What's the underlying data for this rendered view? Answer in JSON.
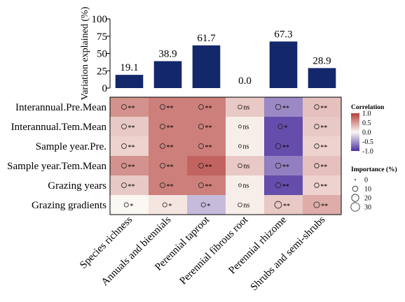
{
  "chart_data": [
    {
      "type": "bar",
      "categories": [
        "Species richness",
        "Annuals and biennials",
        "Perennial taproot",
        "Perennial fibrous root",
        "Perennial rhizome",
        "Shrubs and semi-shrubs"
      ],
      "values": [
        19.1,
        38.9,
        61.7,
        0.0,
        67.3,
        28.9
      ],
      "value_labels": [
        "19.1",
        "38.9",
        "61.7",
        "0.0",
        "67.3",
        "28.9"
      ],
      "ylabel": "Variation explained (%)",
      "ylim": [
        0,
        100
      ],
      "yticks": [
        0,
        25,
        50,
        75,
        100
      ],
      "bar_color": "#13276b"
    },
    {
      "type": "heatmap",
      "rows": [
        "Interannual.Pre.Mean",
        "Interannual.Tem.Mean",
        "Sample year.Pre.",
        "Sample year.Tem.Mean",
        "Grazing years",
        "Grazing gradients"
      ],
      "columns": [
        "Species richness",
        "Annuals and biennials",
        "Perennial taproot",
        "Perennial fibrous root",
        "Perennial rhizome",
        "Shrubs and semi-shrubs"
      ],
      "correlation": [
        [
          0.55,
          0.65,
          0.65,
          0.25,
          -0.55,
          0.3
        ],
        [
          0.25,
          0.65,
          0.65,
          0.05,
          -0.85,
          0.25
        ],
        [
          0.2,
          0.65,
          0.65,
          0.05,
          -0.85,
          0.2
        ],
        [
          0.55,
          0.65,
          0.8,
          0.25,
          -0.6,
          0.3
        ],
        [
          0.25,
          0.65,
          0.65,
          0.05,
          -0.85,
          0.2
        ],
        [
          0.0,
          0.1,
          -0.3,
          0.05,
          0.25,
          0.4
        ]
      ],
      "importance": [
        [
          8,
          8,
          8,
          5,
          10,
          7
        ],
        [
          8,
          8,
          8,
          2,
          7,
          7
        ],
        [
          8,
          8,
          8,
          2,
          10,
          7
        ],
        [
          8,
          8,
          8,
          5,
          10,
          7
        ],
        [
          8,
          8,
          8,
          2,
          10,
          7
        ],
        [
          6,
          6,
          6,
          5,
          18,
          12
        ]
      ],
      "significance": [
        [
          "**",
          "**",
          "**",
          "ns",
          "**",
          "**"
        ],
        [
          "**",
          "**",
          "**",
          "ns",
          "*",
          "**"
        ],
        [
          "**",
          "**",
          "**",
          "ns",
          "**",
          "**"
        ],
        [
          "**",
          "**",
          "**",
          "ns",
          "**",
          "**"
        ],
        [
          "**",
          "**",
          "**",
          "ns",
          "**",
          "**"
        ],
        [
          "*",
          "*",
          "*",
          "ns",
          "**",
          "**"
        ]
      ],
      "colorbar": {
        "title": "Correlation",
        "min": -1.0,
        "max": 1.0,
        "ticks": [
          "1.0",
          "0.5",
          "0.0",
          "-0.5",
          "-1.0"
        ],
        "colors": {
          "low": "#4b2fa0",
          "mid": "#fbf7f3",
          "high": "#b33f3a"
        }
      },
      "size_legend": {
        "title": "Importance (%)",
        "values": [
          0,
          10,
          20,
          30
        ],
        "labels": [
          "0",
          "10",
          "20",
          "30"
        ]
      }
    }
  ]
}
